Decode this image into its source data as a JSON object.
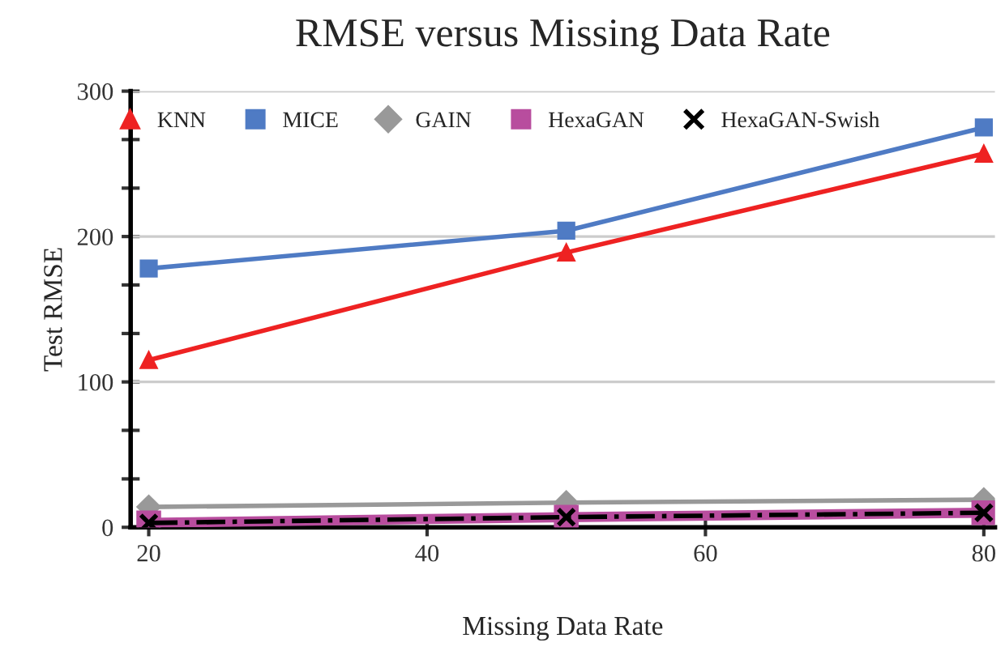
{
  "chart_data": {
    "type": "line",
    "title": "RMSE versus Missing Data Rate",
    "xlabel": "Missing Data Rate",
    "ylabel": "Test RMSE",
    "x": [
      20,
      50,
      80
    ],
    "series": [
      {
        "name": "KNN",
        "color": "#ee2222",
        "values": [
          115,
          189,
          257
        ],
        "marker": "triangle",
        "line_style": "solid"
      },
      {
        "name": "MICE",
        "color": "#4f7bc4",
        "values": [
          178,
          204,
          275
        ],
        "marker": "square",
        "line_style": "solid"
      },
      {
        "name": "GAIN",
        "color": "#999999",
        "values": [
          14,
          17,
          19
        ],
        "marker": "diamond",
        "line_style": "solid"
      },
      {
        "name": "HexaGAN",
        "color": "#b84d9e",
        "values": [
          3,
          7,
          10
        ],
        "marker": "square",
        "line_style": "solid"
      },
      {
        "name": "HexaGAN-Swish",
        "color": "#000000",
        "values": [
          3,
          7,
          10
        ],
        "marker": "cross",
        "line_style": "dashdot"
      }
    ],
    "xlim": [
      18.7,
      80.8
    ],
    "xticks": [
      20,
      40,
      60,
      80
    ],
    "ylim": [
      0,
      300
    ],
    "yticks": [
      0,
      {
        "value": 33.3,
        "label": null
      },
      {
        "value": 66.7,
        "label": null
      },
      100,
      {
        "value": 133.3,
        "label": null
      },
      {
        "value": 166.7,
        "label": null
      },
      200,
      {
        "value": 233.3,
        "label": null
      },
      {
        "value": 266.7,
        "label": null
      },
      300
    ],
    "grid": "y",
    "legend": "top"
  }
}
